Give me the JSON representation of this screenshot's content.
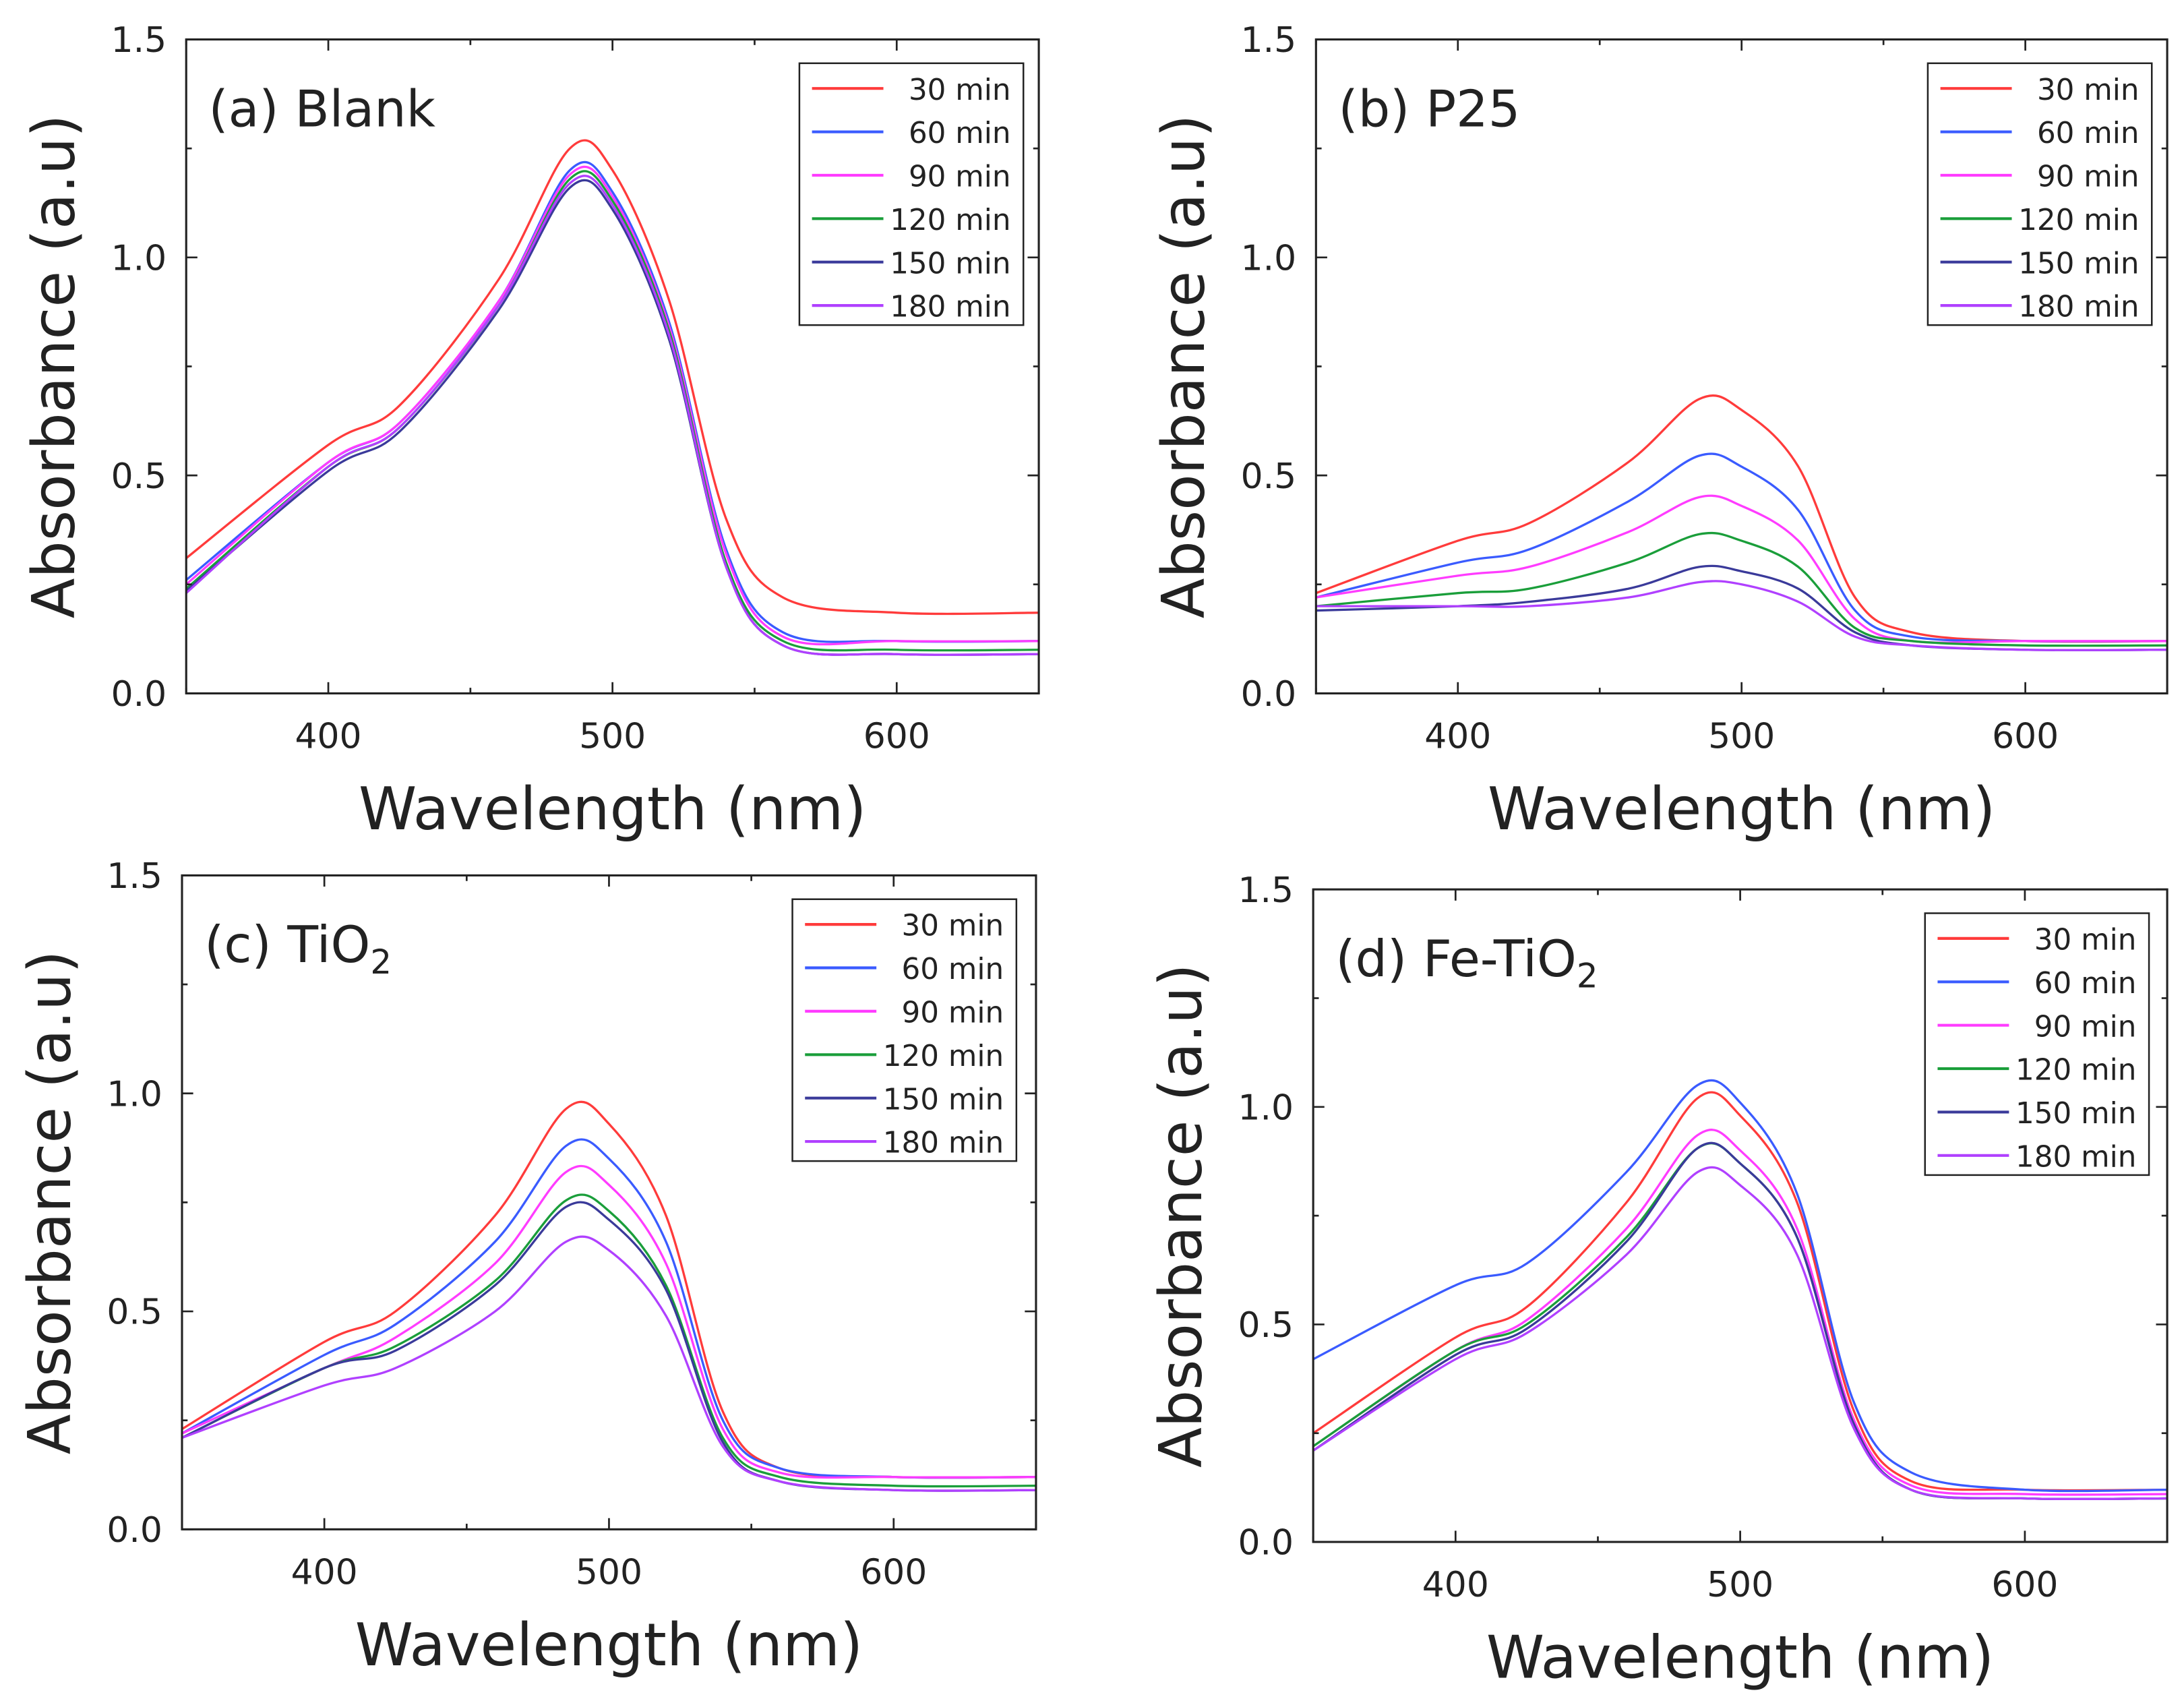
{
  "chart_data": [
    {
      "type": "line",
      "title_prefix": "(a) Blank",
      "title_sub": "",
      "xlabel": "Wavelength (nm)",
      "ylabel": "Absorbance (a.u)",
      "xlim": [
        350,
        650
      ],
      "ylim": [
        0,
        1.5
      ],
      "xticks": [
        400,
        500,
        600
      ],
      "yticks": [
        "0.0",
        "0.5",
        "1.0",
        "1.5"
      ],
      "x": [
        350,
        400,
        425,
        460,
        485,
        500,
        520,
        540,
        560,
        600,
        650
      ],
      "series": [
        {
          "name": "30 min",
          "color": "#ff3b3b",
          "values": [
            0.31,
            0.57,
            0.66,
            0.95,
            1.25,
            1.2,
            0.9,
            0.4,
            0.22,
            0.185,
            0.185
          ]
        },
        {
          "name": "60 min",
          "color": "#3a5bff",
          "values": [
            0.26,
            0.53,
            0.62,
            0.9,
            1.2,
            1.15,
            0.85,
            0.33,
            0.14,
            0.12,
            0.12
          ]
        },
        {
          "name": "90 min",
          "color": "#ff3cff",
          "values": [
            0.25,
            0.53,
            0.62,
            0.9,
            1.19,
            1.14,
            0.84,
            0.32,
            0.13,
            0.12,
            0.12
          ]
        },
        {
          "name": "120 min",
          "color": "#1a9e3a",
          "values": [
            0.24,
            0.52,
            0.61,
            0.89,
            1.18,
            1.13,
            0.83,
            0.3,
            0.12,
            0.1,
            0.1
          ]
        },
        {
          "name": "150 min",
          "color": "#3a3a9a",
          "values": [
            0.235,
            0.51,
            0.6,
            0.88,
            1.16,
            1.11,
            0.81,
            0.29,
            0.11,
            0.09,
            0.09
          ]
        },
        {
          "name": "180 min",
          "color": "#b040ff",
          "values": [
            0.23,
            0.52,
            0.61,
            0.89,
            1.17,
            1.12,
            0.82,
            0.29,
            0.11,
            0.09,
            0.09
          ]
        }
      ]
    },
    {
      "type": "line",
      "title_prefix": "(b) P25",
      "title_sub": "",
      "xlabel": "Wavelength (nm)",
      "ylabel": "Absorbance (a.u)",
      "xlim": [
        350,
        650
      ],
      "ylim": [
        0,
        1.5
      ],
      "xticks": [
        400,
        500,
        600
      ],
      "yticks": [
        "0.0",
        "0.5",
        "1.0",
        "1.5"
      ],
      "x": [
        350,
        400,
        425,
        460,
        485,
        500,
        520,
        540,
        560,
        600,
        650
      ],
      "series": [
        {
          "name": "30 min",
          "color": "#ff3b3b",
          "values": [
            0.23,
            0.35,
            0.39,
            0.53,
            0.675,
            0.65,
            0.52,
            0.22,
            0.14,
            0.12,
            0.12
          ]
        },
        {
          "name": "60 min",
          "color": "#3a5bff",
          "values": [
            0.22,
            0.3,
            0.33,
            0.44,
            0.545,
            0.52,
            0.42,
            0.19,
            0.13,
            0.12,
            0.12
          ]
        },
        {
          "name": "90 min",
          "color": "#ff3cff",
          "values": [
            0.22,
            0.27,
            0.29,
            0.37,
            0.45,
            0.43,
            0.35,
            0.17,
            0.12,
            0.12,
            0.12
          ]
        },
        {
          "name": "120 min",
          "color": "#1a9e3a",
          "values": [
            0.2,
            0.23,
            0.24,
            0.3,
            0.365,
            0.35,
            0.29,
            0.15,
            0.12,
            0.11,
            0.11
          ]
        },
        {
          "name": "150 min",
          "color": "#3a3a9a",
          "values": [
            0.19,
            0.2,
            0.21,
            0.24,
            0.29,
            0.28,
            0.24,
            0.14,
            0.11,
            0.1,
            0.1
          ]
        },
        {
          "name": "180 min",
          "color": "#b040ff",
          "values": [
            0.2,
            0.2,
            0.2,
            0.22,
            0.255,
            0.25,
            0.21,
            0.13,
            0.11,
            0.1,
            0.1
          ]
        }
      ]
    },
    {
      "type": "line",
      "title_prefix": "(c) TiO",
      "title_sub": "2",
      "xlabel": "Wavelength (nm)",
      "ylabel": "Absorbance (a.u)",
      "xlim": [
        350,
        650
      ],
      "ylim": [
        0,
        1.5
      ],
      "xticks": [
        400,
        500,
        600
      ],
      "yticks": [
        "0.0",
        "0.5",
        "1.0",
        "1.5"
      ],
      "x": [
        350,
        400,
        425,
        460,
        485,
        500,
        520,
        540,
        560,
        600,
        650
      ],
      "series": [
        {
          "name": "30 min",
          "color": "#ff3b3b",
          "values": [
            0.23,
            0.43,
            0.5,
            0.72,
            0.965,
            0.93,
            0.72,
            0.27,
            0.14,
            0.12,
            0.12
          ]
        },
        {
          "name": "60 min",
          "color": "#3a5bff",
          "values": [
            0.22,
            0.4,
            0.47,
            0.66,
            0.88,
            0.85,
            0.66,
            0.25,
            0.14,
            0.12,
            0.12
          ]
        },
        {
          "name": "90 min",
          "color": "#ff3cff",
          "values": [
            0.22,
            0.37,
            0.44,
            0.61,
            0.82,
            0.79,
            0.61,
            0.23,
            0.13,
            0.12,
            0.12
          ]
        },
        {
          "name": "120 min",
          "color": "#1a9e3a",
          "values": [
            0.21,
            0.37,
            0.42,
            0.57,
            0.755,
            0.73,
            0.56,
            0.21,
            0.12,
            0.1,
            0.1
          ]
        },
        {
          "name": "150 min",
          "color": "#3a3a9a",
          "values": [
            0.21,
            0.37,
            0.41,
            0.56,
            0.74,
            0.71,
            0.55,
            0.2,
            0.11,
            0.09,
            0.09
          ]
        },
        {
          "name": "180 min",
          "color": "#b040ff",
          "values": [
            0.21,
            0.33,
            0.37,
            0.5,
            0.66,
            0.64,
            0.49,
            0.19,
            0.11,
            0.09,
            0.09
          ]
        }
      ]
    },
    {
      "type": "line",
      "title_prefix": "(d) Fe-TiO",
      "title_sub": "2",
      "xlabel": "Wavelength (nm)",
      "ylabel": "Absorbance (a.u)",
      "xlim": [
        350,
        650
      ],
      "ylim": [
        0,
        1.5
      ],
      "xticks": [
        400,
        500,
        600
      ],
      "yticks": [
        "0.0",
        "0.5",
        "1.0",
        "1.5"
      ],
      "x": [
        350,
        400,
        425,
        460,
        485,
        500,
        520,
        540,
        560,
        600,
        650
      ],
      "series": [
        {
          "name": "30 min",
          "color": "#ff3b3b",
          "values": [
            0.25,
            0.47,
            0.54,
            0.78,
            1.02,
            0.98,
            0.78,
            0.3,
            0.14,
            0.12,
            0.12
          ]
        },
        {
          "name": "60 min",
          "color": "#3a5bff",
          "values": [
            0.42,
            0.59,
            0.64,
            0.85,
            1.05,
            1.01,
            0.8,
            0.32,
            0.16,
            0.12,
            0.12
          ]
        },
        {
          "name": "90 min",
          "color": "#ff3cff",
          "values": [
            0.22,
            0.44,
            0.51,
            0.72,
            0.935,
            0.9,
            0.72,
            0.28,
            0.13,
            0.11,
            0.11
          ]
        },
        {
          "name": "120 min",
          "color": "#1a9e3a",
          "values": [
            0.22,
            0.44,
            0.5,
            0.7,
            0.905,
            0.87,
            0.7,
            0.27,
            0.12,
            0.1,
            0.1
          ]
        },
        {
          "name": "150 min",
          "color": "#3a3a9a",
          "values": [
            0.21,
            0.43,
            0.49,
            0.69,
            0.905,
            0.87,
            0.7,
            0.27,
            0.12,
            0.1,
            0.1
          ]
        },
        {
          "name": "180 min",
          "color": "#b040ff",
          "values": [
            0.21,
            0.42,
            0.48,
            0.66,
            0.85,
            0.82,
            0.66,
            0.26,
            0.12,
            0.1,
            0.1
          ]
        }
      ]
    }
  ]
}
